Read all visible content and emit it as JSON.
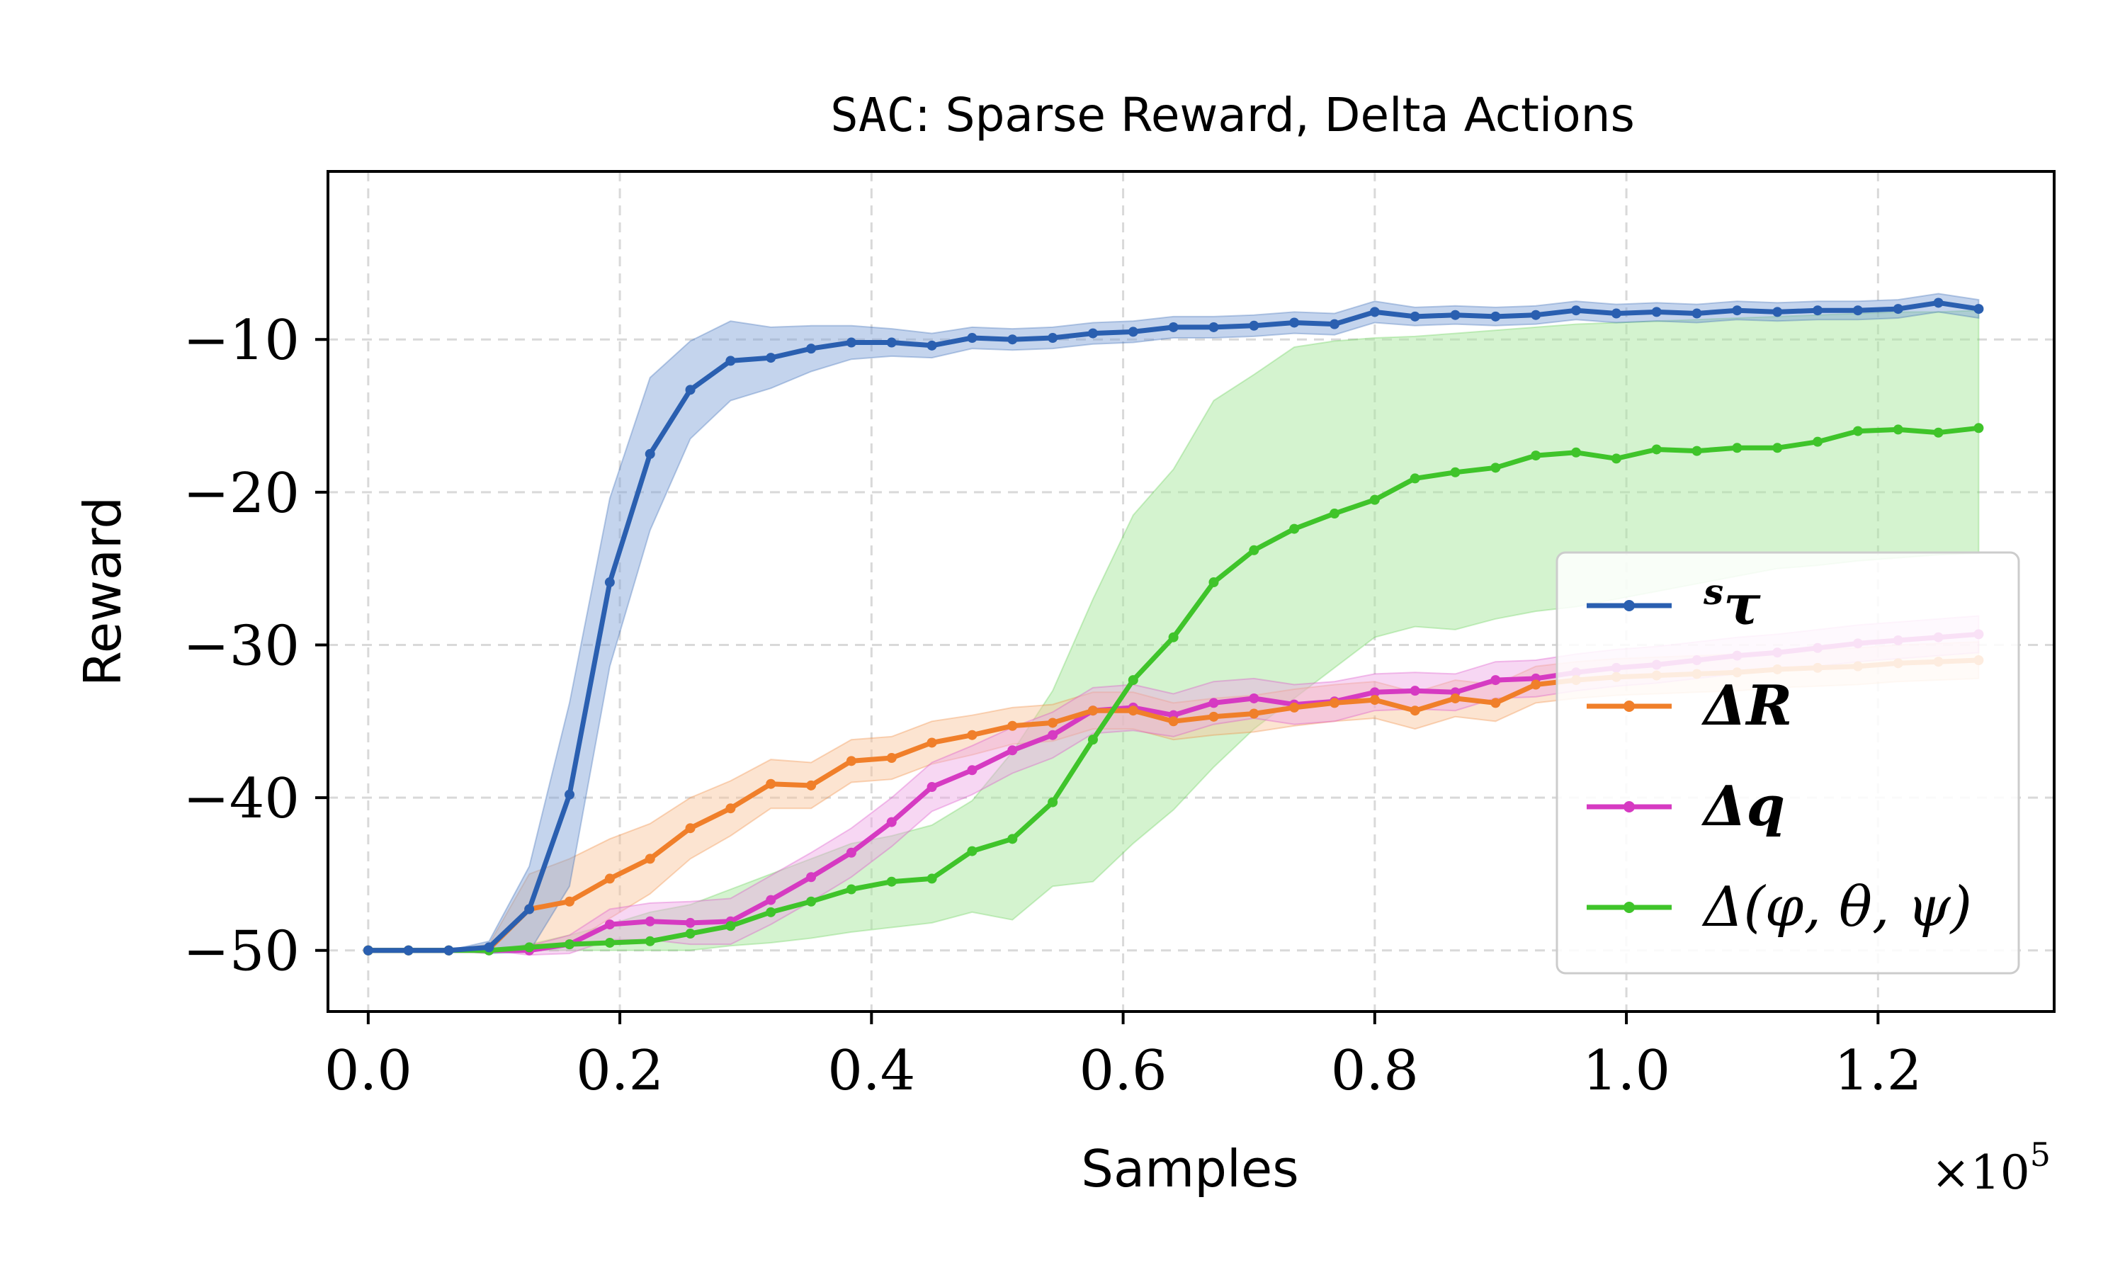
{
  "chart_data": {
    "type": "line",
    "title_mono": "SAC",
    "title_rest": ": Sparse Reward, Delta Actions",
    "xlabel": "Samples",
    "ylabel": "Reward",
    "x_multiplier_label": "×10",
    "x_multiplier_exp": "5",
    "xlim": [
      -0.032,
      1.34
    ],
    "ylim": [
      -54,
      1
    ],
    "xticks": [
      0.0,
      0.2,
      0.4,
      0.6,
      0.8,
      1.0,
      1.2
    ],
    "xtick_labels": [
      "0.0",
      "0.2",
      "0.4",
      "0.6",
      "0.8",
      "1.0",
      "1.2"
    ],
    "yticks": [
      -10,
      -20,
      -30,
      -40,
      -50
    ],
    "ytick_labels": [
      "−10",
      "−20",
      "−30",
      "−40",
      "−50"
    ],
    "grid": true,
    "legend_position": "lower-right",
    "x": [
      0.0,
      0.032,
      0.064,
      0.096,
      0.128,
      0.16,
      0.192,
      0.224,
      0.256,
      0.288,
      0.32,
      0.352,
      0.384,
      0.416,
      0.448,
      0.48,
      0.512,
      0.544,
      0.576,
      0.608,
      0.64,
      0.672,
      0.704,
      0.736,
      0.768,
      0.8,
      0.832,
      0.864,
      0.896,
      0.928,
      0.96,
      0.992,
      1.024,
      1.056,
      1.088,
      1.12,
      1.152,
      1.184,
      1.216,
      1.248,
      1.28
    ],
    "series": [
      {
        "name": "sτ",
        "label_sup": "s",
        "label_main": "τ",
        "bold": true,
        "color": "#2a5fb0",
        "band_color": "#7d9fd8",
        "values": [
          -50,
          -50,
          -50,
          -49.8,
          -47.3,
          -39.8,
          -25.9,
          -17.5,
          -13.3,
          -11.4,
          -11.2,
          -10.6,
          -10.2,
          -10.2,
          -10.4,
          -9.9,
          -10.0,
          -9.9,
          -9.6,
          -9.5,
          -9.2,
          -9.2,
          -9.1,
          -8.9,
          -9.0,
          -8.2,
          -8.5,
          -8.4,
          -8.5,
          -8.4,
          -8.1,
          -8.3,
          -8.2,
          -8.3,
          -8.1,
          -8.2,
          -8.1,
          -8.1,
          -8.0,
          -7.6,
          -8.0
        ],
        "spread": [
          0,
          0,
          0,
          0.4,
          2.8,
          6.0,
          5.5,
          5.0,
          3.2,
          2.6,
          2.0,
          1.5,
          1.1,
          0.9,
          0.8,
          0.7,
          0.7,
          0.7,
          0.7,
          0.7,
          0.7,
          0.7,
          0.7,
          0.7,
          0.7,
          0.7,
          0.6,
          0.6,
          0.6,
          0.6,
          0.6,
          0.6,
          0.6,
          0.6,
          0.6,
          0.6,
          0.6,
          0.6,
          0.6,
          0.6,
          0.6
        ]
      },
      {
        "name": "ΔR",
        "label_sup": "",
        "label_main": "ΔR",
        "bold": true,
        "color": "#f07f2a",
        "band_color": "#f8c39a",
        "values": [
          -50,
          -50,
          -50,
          -49.9,
          -47.3,
          -46.8,
          -45.3,
          -44.0,
          -42.0,
          -40.7,
          -39.1,
          -39.2,
          -37.6,
          -37.4,
          -36.4,
          -35.9,
          -35.3,
          -35.1,
          -34.3,
          -34.3,
          -35.0,
          -34.7,
          -34.5,
          -34.1,
          -33.8,
          -33.6,
          -34.3,
          -33.5,
          -33.8,
          -32.6,
          -32.3,
          -32.1,
          -32.0,
          -31.9,
          -31.8,
          -31.6,
          -31.5,
          -31.4,
          -31.2,
          -31.1,
          -31.0
        ],
        "spread": [
          0,
          0,
          0,
          0.3,
          2.3,
          2.8,
          2.6,
          2.3,
          2.0,
          1.8,
          1.6,
          1.5,
          1.4,
          1.4,
          1.4,
          1.3,
          1.2,
          1.2,
          1.2,
          1.2,
          1.2,
          1.2,
          1.2,
          1.2,
          1.2,
          1.2,
          1.2,
          1.2,
          1.2,
          1.2,
          1.2,
          1.2,
          1.2,
          1.2,
          1.2,
          1.2,
          1.2,
          1.2,
          1.2,
          1.2,
          1.2
        ]
      },
      {
        "name": "Δq",
        "label_sup": "",
        "label_main": "Δq",
        "bold": true,
        "color": "#d63ac2",
        "band_color": "#eea6e4",
        "values": [
          -50,
          -50,
          -50,
          -50,
          -50,
          -49.6,
          -48.3,
          -48.1,
          -48.2,
          -48.1,
          -46.7,
          -45.2,
          -43.6,
          -41.6,
          -39.3,
          -38.2,
          -36.9,
          -35.9,
          -34.3,
          -34.1,
          -34.6,
          -33.8,
          -33.5,
          -33.9,
          -33.7,
          -33.1,
          -33.0,
          -33.1,
          -32.3,
          -32.2,
          -31.8,
          -31.5,
          -31.3,
          -31.0,
          -30.7,
          -30.5,
          -30.2,
          -29.9,
          -29.7,
          -29.5,
          -29.3
        ],
        "spread": [
          0,
          0,
          0,
          0,
          0.3,
          0.6,
          1.0,
          1.2,
          1.4,
          1.5,
          1.6,
          1.6,
          1.6,
          1.6,
          1.6,
          1.6,
          1.5,
          1.5,
          1.5,
          1.5,
          1.4,
          1.4,
          1.3,
          1.3,
          1.3,
          1.2,
          1.2,
          1.2,
          1.2,
          1.2,
          1.2,
          1.2,
          1.2,
          1.2,
          1.2,
          1.2,
          1.2,
          1.2,
          1.2,
          1.2,
          1.2
        ]
      },
      {
        "name": "Δ(φ,θ,ψ)",
        "label_sup": "",
        "label_main": "Δ(φ, θ, ψ)",
        "bold": false,
        "color": "#3fc42a",
        "band_color": "#a9e8a0",
        "values": [
          -50,
          -50,
          -50,
          -50,
          -49.8,
          -49.6,
          -49.5,
          -49.4,
          -48.9,
          -48.4,
          -47.5,
          -46.8,
          -46.0,
          -45.5,
          -45.3,
          -43.5,
          -42.7,
          -40.3,
          -36.2,
          -32.3,
          -29.5,
          -25.9,
          -23.8,
          -22.4,
          -21.4,
          -20.5,
          -19.1,
          -18.7,
          -18.4,
          -17.6,
          -17.4,
          -17.8,
          -17.2,
          -17.3,
          -17.1,
          -17.1,
          -16.7,
          -16.0,
          -15.9,
          -16.1,
          -15.8
        ]
      }
    ]
  },
  "band_green": {
    "upper": [
      -50,
      -50,
      -50,
      -50,
      -49.6,
      -49.0,
      -48.3,
      -47.5,
      -47.0,
      -46.0,
      -45.0,
      -44.0,
      -43.0,
      -42.5,
      -41.8,
      -40.2,
      -37.0,
      -33.0,
      -27.0,
      -21.5,
      -18.5,
      -14.0,
      -12.3,
      -10.5,
      -10.1,
      -9.9,
      -9.8,
      -9.6,
      -9.4,
      -9.2,
      -9.0,
      -8.9,
      -8.8,
      -8.7,
      -8.6,
      -8.5,
      -8.4,
      -8.3,
      -8.2,
      -8.2,
      -8.1
    ],
    "lower": [
      -50,
      -50,
      -50,
      -50,
      -50,
      -50,
      -50,
      -50,
      -50,
      -49.7,
      -49.5,
      -49.2,
      -48.8,
      -48.5,
      -48.2,
      -47.5,
      -48.0,
      -45.8,
      -45.5,
      -43.0,
      -40.8,
      -38.0,
      -35.5,
      -33.5,
      -31.5,
      -29.5,
      -28.8,
      -29.0,
      -28.3,
      -27.8,
      -27.5,
      -27.0,
      -26.5,
      -26.0,
      -25.5,
      -25.0,
      -24.8,
      -24.5,
      -24.3,
      -24.1,
      -24.0
    ]
  }
}
